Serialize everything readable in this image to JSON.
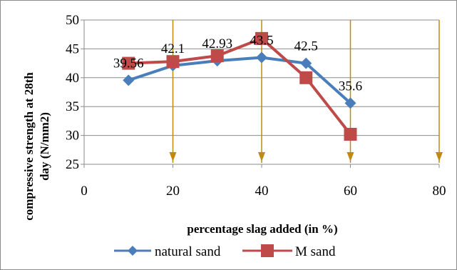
{
  "chart_data": {
    "type": "line",
    "xlabel": "percentage slag added (in %)",
    "ylabel_lines": [
      "compressive strength at 28th",
      "day (N/mm2)"
    ],
    "xlim": [
      0,
      80
    ],
    "ylim": [
      25,
      50
    ],
    "xticks": [
      0,
      20,
      40,
      60,
      80
    ],
    "yticks": [
      25,
      30,
      35,
      40,
      45,
      50
    ],
    "grid": "vertical",
    "legend": "bottom",
    "series": [
      {
        "name": "natural sand",
        "color": "#4a7ebb",
        "marker": "diamond",
        "x": [
          10,
          20,
          30,
          40,
          50,
          60
        ],
        "y": [
          39.56,
          42.1,
          42.93,
          43.5,
          42.5,
          35.6
        ],
        "labels": [
          "39.56",
          "42.1",
          "42.93",
          "43.5",
          "42.5",
          "35.6"
        ]
      },
      {
        "name": "M sand",
        "color": "#be4b48",
        "marker": "square",
        "x": [
          10,
          20,
          30,
          40,
          50,
          60
        ],
        "y": [
          42.5,
          42.8,
          43.8,
          46.8,
          40.0,
          30.2
        ]
      }
    ],
    "annotation_arrows": {
      "x": [
        20,
        40,
        60,
        80
      ],
      "color": "#c08a10"
    }
  }
}
